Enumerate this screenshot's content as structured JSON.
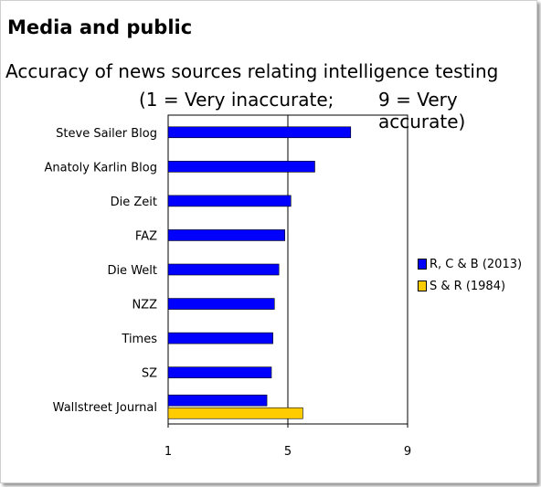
{
  "header": {
    "title": "Media and public",
    "subtitle": "Accuracy of news sources relating intelligence testing",
    "scale_left": "(1 = Very inaccurate;",
    "scale_right": "9 = Very accurate)"
  },
  "chart_data": {
    "type": "bar",
    "orientation": "horizontal",
    "categories": [
      "Steve Sailer Blog",
      "Anatoly Karlin Blog",
      "Die Zeit",
      "FAZ",
      "Die Welt",
      "NZZ",
      "Times",
      "SZ",
      "Wallstreet Journal"
    ],
    "series": [
      {
        "name": "R, C & B (2013)",
        "color": "#0000ff",
        "values": [
          7.1,
          5.9,
          5.1,
          4.9,
          4.7,
          4.55,
          4.5,
          4.45,
          4.3
        ]
      },
      {
        "name": "S & R (1984)",
        "color": "#ffcc00",
        "values": [
          null,
          null,
          null,
          null,
          null,
          null,
          null,
          null,
          5.5
        ]
      }
    ],
    "xlim": [
      1,
      9
    ],
    "xticks": [
      "1",
      "5",
      "9"
    ],
    "grid": "vertical line at 5",
    "legend_position": "right"
  }
}
